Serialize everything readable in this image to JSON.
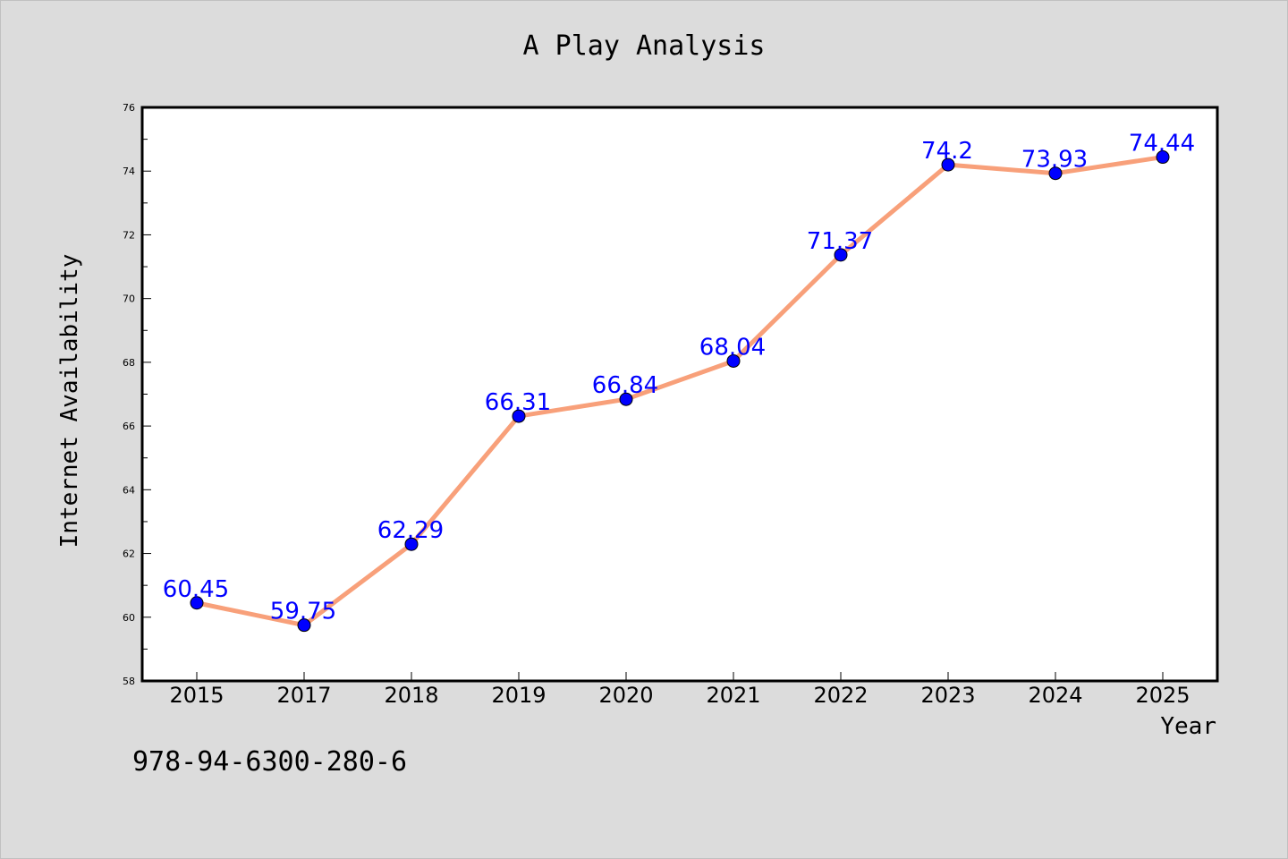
{
  "figure": {
    "background": "#dcdcdc",
    "footnote": "978-94-6300-280-6"
  },
  "chart_data": {
    "type": "line",
    "title": "A Play Analysis",
    "xlabel": "Year",
    "ylabel": "Internet Availability",
    "categories": [
      "2015",
      "2017",
      "2018",
      "2019",
      "2020",
      "2021",
      "2022",
      "2023",
      "2024",
      "2025"
    ],
    "series": [
      {
        "values": [
          60.45,
          59.75,
          62.29,
          66.31,
          66.84,
          68.04,
          71.37,
          74.2,
          73.93,
          74.44
        ],
        "line_color": "#f8a07a",
        "marker_color": "#0000ff"
      }
    ],
    "data_labels": [
      "60.45",
      "59.75",
      "62.29",
      "66.31",
      "66.84",
      "68.04",
      "71.37",
      "74.2",
      "73.93",
      "74.44"
    ],
    "ylim": [
      58,
      76
    ],
    "yticks": [
      58,
      60,
      62,
      64,
      66,
      68,
      70,
      72,
      74,
      76
    ],
    "grid": false,
    "legend": "none",
    "data_label_color": "#0000ff"
  }
}
